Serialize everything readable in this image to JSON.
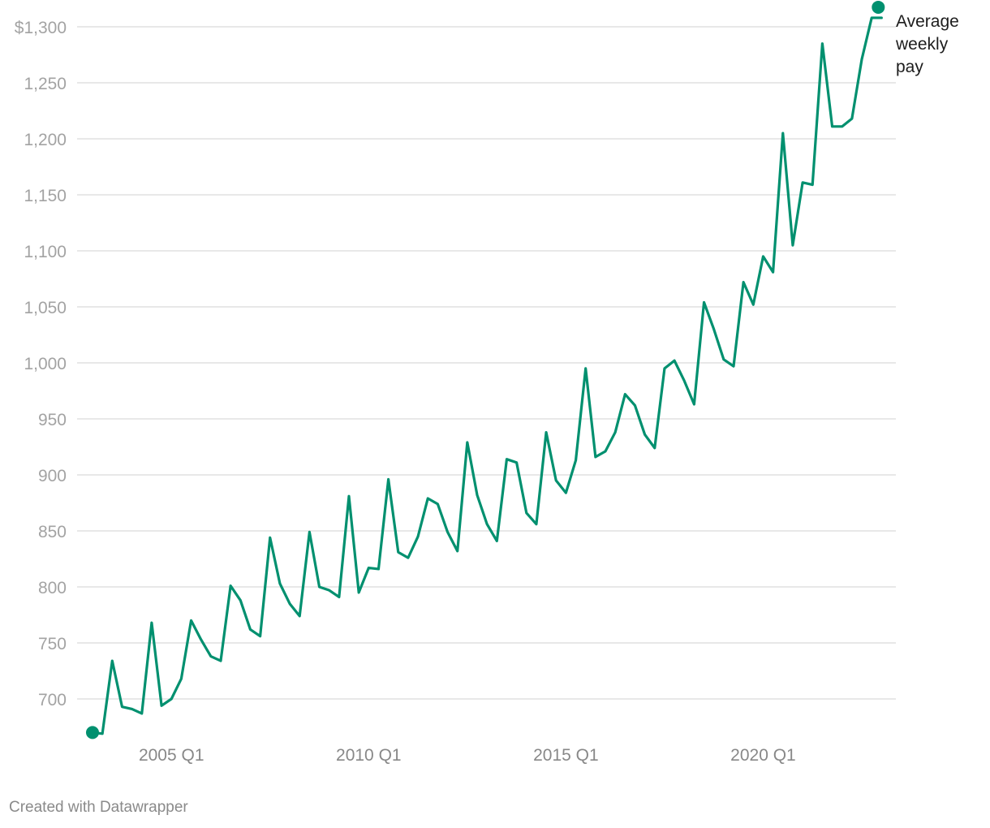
{
  "chart_data": {
    "type": "line",
    "title": "",
    "xlabel": "",
    "ylabel": "",
    "y_tick_labels": [
      "$1,300",
      "1,250",
      "1,200",
      "1,150",
      "1,100",
      "1,050",
      "1,000",
      "950",
      "900",
      "850",
      "800",
      "750",
      "700"
    ],
    "y_ticks": [
      1300,
      1250,
      1200,
      1150,
      1100,
      1050,
      1000,
      950,
      900,
      850,
      800,
      750,
      700
    ],
    "x_tick_labels": [
      "2005 Q1",
      "2010 Q1",
      "2015 Q1",
      "2020 Q1"
    ],
    "x_ticks": [
      "2005 Q1",
      "2010 Q1",
      "2015 Q1",
      "2020 Q1"
    ],
    "grid": true,
    "series": [
      {
        "name": "Average weekly pay",
        "color": "#00906f",
        "x": [
          "2003 Q1",
          "2003 Q2",
          "2003 Q3",
          "2003 Q4",
          "2004 Q1",
          "2004 Q2",
          "2004 Q3",
          "2004 Q4",
          "2005 Q1",
          "2005 Q2",
          "2005 Q3",
          "2005 Q4",
          "2006 Q1",
          "2006 Q2",
          "2006 Q3",
          "2006 Q4",
          "2007 Q1",
          "2007 Q2",
          "2007 Q3",
          "2007 Q4",
          "2008 Q1",
          "2008 Q2",
          "2008 Q3",
          "2008 Q4",
          "2009 Q1",
          "2009 Q2",
          "2009 Q3",
          "2009 Q4",
          "2010 Q1",
          "2010 Q2",
          "2010 Q3",
          "2010 Q4",
          "2011 Q1",
          "2011 Q2",
          "2011 Q3",
          "2011 Q4",
          "2012 Q1",
          "2012 Q2",
          "2012 Q3",
          "2012 Q4",
          "2013 Q1",
          "2013 Q2",
          "2013 Q3",
          "2013 Q4",
          "2014 Q1",
          "2014 Q2",
          "2014 Q3",
          "2014 Q4",
          "2015 Q1",
          "2015 Q2",
          "2015 Q3",
          "2015 Q4",
          "2016 Q1",
          "2016 Q2",
          "2016 Q3",
          "2016 Q4",
          "2017 Q1",
          "2017 Q2",
          "2017 Q3",
          "2017 Q4",
          "2018 Q1",
          "2018 Q2",
          "2018 Q3",
          "2018 Q4",
          "2019 Q1",
          "2019 Q2",
          "2019 Q3",
          "2019 Q4",
          "2020 Q1",
          "2020 Q2",
          "2020 Q3",
          "2020 Q4",
          "2021 Q1",
          "2021 Q2",
          "2021 Q3",
          "2021 Q4",
          "2022 Q1",
          "2022 Q2",
          "2022 Q3",
          "2022 Q4",
          "2023 Q1"
        ],
        "values": [
          670,
          669,
          734,
          693,
          691,
          687,
          768,
          694,
          700,
          718,
          770,
          753,
          738,
          734,
          801,
          788,
          762,
          756,
          844,
          803,
          785,
          774,
          849,
          800,
          797,
          791,
          881,
          795,
          817,
          816,
          896,
          831,
          826,
          845,
          879,
          874,
          849,
          832,
          929,
          882,
          856,
          841,
          914,
          911,
          866,
          856,
          938,
          895,
          884,
          913,
          995,
          916,
          921,
          938,
          972,
          962,
          936,
          924,
          995,
          1002,
          984,
          963,
          1054,
          1030,
          1003,
          997,
          1072,
          1052,
          1095,
          1081,
          1205,
          1105,
          1161,
          1159,
          1285,
          1211,
          1211,
          1218,
          1271,
          1308,
          1308
        ]
      }
    ]
  },
  "footer": {
    "credit": "Created with Datawrapper"
  },
  "series_label_lines": [
    "Average",
    "weekly",
    "pay"
  ]
}
